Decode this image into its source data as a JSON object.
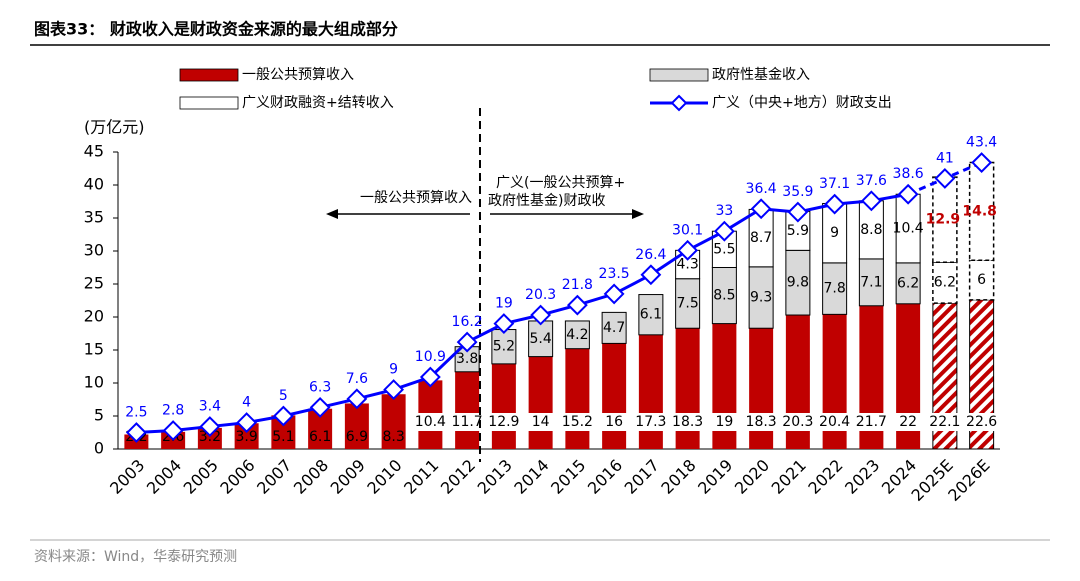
{
  "chart_data": {
    "type": "bar-line",
    "title": "图表33： 财政收入是财政资金来源的最大组成部分",
    "y_label": "(万亿元)",
    "source": "资料来源：Wind，华泰研究预测",
    "annotations": [
      "一般公共预算收入",
      "广义(一般公共预算+",
      "政府性基金)财政收"
    ],
    "categories": [
      "2003",
      "2004",
      "2005",
      "2006",
      "2007",
      "2008",
      "2009",
      "2010",
      "2011",
      "2012",
      "2013",
      "2014",
      "2015",
      "2016",
      "2017",
      "2018",
      "2019",
      "2020",
      "2021",
      "2022",
      "2023",
      "2024",
      "2025E",
      "2026E"
    ],
    "series": [
      {
        "name": "一般公共预算收入",
        "color": "#c00000",
        "values": [
          2.2,
          2.6,
          3.2,
          3.9,
          5.1,
          6.1,
          6.9,
          8.3,
          10.4,
          11.7,
          12.9,
          14.0,
          15.2,
          16.0,
          17.3,
          18.3,
          19.0,
          18.3,
          20.3,
          20.4,
          21.7,
          22.0,
          22.1,
          22.6
        ]
      },
      {
        "name": "政府性基金收入",
        "color": "#d9d9d9",
        "values": [
          null,
          null,
          null,
          null,
          null,
          null,
          null,
          null,
          null,
          3.8,
          5.2,
          5.4,
          4.2,
          4.7,
          6.1,
          7.5,
          8.5,
          9.3,
          9.8,
          7.8,
          7.1,
          6.2,
          6.2,
          6.0
        ]
      },
      {
        "name": "广义财政融资+结转收入",
        "color": "#ffffff",
        "values": [
          null,
          null,
          null,
          null,
          null,
          null,
          null,
          null,
          null,
          null,
          null,
          null,
          null,
          null,
          null,
          4.3,
          5.5,
          8.7,
          5.9,
          9.0,
          8.8,
          10.4,
          12.9,
          14.8
        ]
      },
      {
        "name": "广义（中央+地方）财政支出",
        "color": "#0000ff",
        "type": "line",
        "values": [
          2.5,
          2.8,
          3.4,
          4.0,
          5.0,
          6.3,
          7.6,
          9.0,
          10.9,
          16.2,
          19.0,
          20.3,
          21.8,
          23.5,
          26.4,
          30.1,
          33.0,
          36.4,
          35.9,
          37.1,
          37.6,
          38.6,
          41.0,
          43.4
        ]
      }
    ],
    "ylim": [
      0,
      45
    ],
    "yticks": [
      0,
      5,
      10,
      15,
      20,
      25,
      30,
      35,
      40,
      45
    ]
  }
}
